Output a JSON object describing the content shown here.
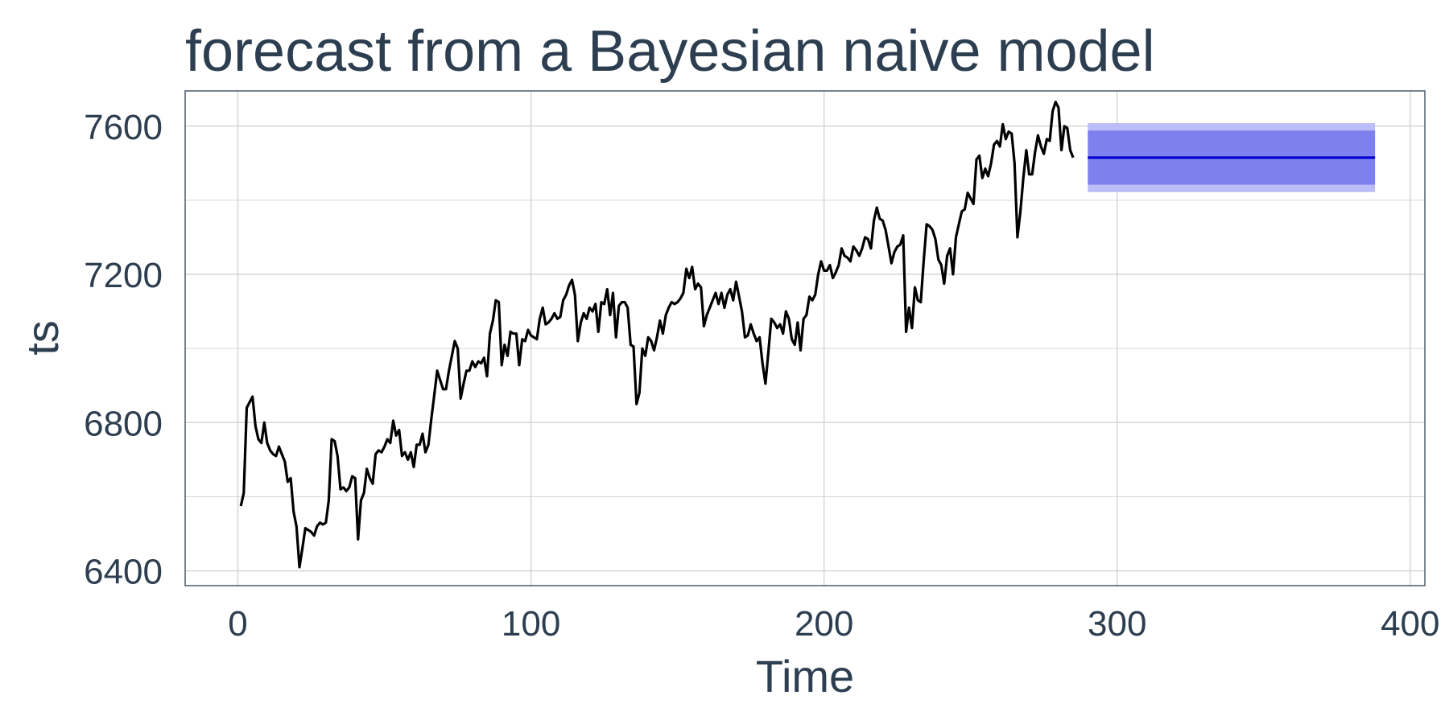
{
  "chart_data": {
    "type": "line",
    "title": "forecast from a Bayesian naive model",
    "xlabel": "Time",
    "ylabel": "ts",
    "xlim": [
      -18,
      405
    ],
    "ylim": [
      6360,
      7695
    ],
    "x_ticks": [
      0,
      100,
      200,
      300,
      400
    ],
    "y_ticks": [
      6400,
      6800,
      7200,
      7600
    ],
    "grid": true,
    "colors": {
      "text": "#2c3e50",
      "grid": "#d4d6d9",
      "border": "#4a5a6a",
      "observed": "#000000",
      "forecast_mean": "#0000cc",
      "interval_80": "#7d80ee",
      "interval_95": "#babdf7"
    },
    "series": [
      {
        "name": "observed",
        "x_start": 1,
        "values": [
          6575,
          6610,
          6840,
          6855,
          6870,
          6790,
          6755,
          6745,
          6800,
          6745,
          6725,
          6715,
          6710,
          6735,
          6715,
          6695,
          6640,
          6650,
          6560,
          6520,
          6410,
          6460,
          6515,
          6510,
          6505,
          6495,
          6520,
          6530,
          6525,
          6530,
          6590,
          6755,
          6750,
          6710,
          6620,
          6625,
          6615,
          6625,
          6655,
          6650,
          6485,
          6590,
          6610,
          6675,
          6650,
          6635,
          6715,
          6725,
          6720,
          6735,
          6755,
          6745,
          6805,
          6765,
          6780,
          6710,
          6720,
          6700,
          6720,
          6680,
          6740,
          6740,
          6770,
          6720,
          6740,
          6810,
          6875,
          6940,
          6915,
          6890,
          6890,
          6940,
          6980,
          7020,
          7000,
          6865,
          6905,
          6940,
          6940,
          6965,
          6950,
          6965,
          6960,
          6975,
          6925,
          7040,
          7075,
          7130,
          7125,
          6955,
          7010,
          6980,
          7045,
          7040,
          7040,
          6955,
          7025,
          7020,
          7050,
          7035,
          7030,
          7025,
          7080,
          7110,
          7065,
          7070,
          7080,
          7095,
          7080,
          7085,
          7130,
          7145,
          7170,
          7185,
          7145,
          7020,
          7070,
          7095,
          7080,
          7110,
          7100,
          7120,
          7045,
          7125,
          7120,
          7160,
          7090,
          7150,
          7030,
          7115,
          7125,
          7125,
          7110,
          7010,
          7005,
          6850,
          6880,
          7000,
          6980,
          7030,
          7020,
          6995,
          7030,
          7075,
          7040,
          7090,
          7110,
          7125,
          7120,
          7125,
          7135,
          7150,
          7215,
          7190,
          7220,
          7160,
          7175,
          7165,
          7060,
          7090,
          7110,
          7130,
          7150,
          7120,
          7150,
          7110,
          7145,
          7160,
          7130,
          7180,
          7140,
          7100,
          7030,
          7035,
          7065,
          7040,
          7020,
          7030,
          6960,
          6905,
          6990,
          7080,
          7070,
          7055,
          7065,
          7040,
          7100,
          7080,
          7025,
          7010,
          7070,
          6995,
          7080,
          7090,
          7140,
          7130,
          7145,
          7200,
          7235,
          7210,
          7210,
          7225,
          7190,
          7205,
          7225,
          7270,
          7250,
          7245,
          7235,
          7275,
          7265,
          7250,
          7270,
          7300,
          7295,
          7270,
          7345,
          7380,
          7350,
          7345,
          7320,
          7275,
          7230,
          7260,
          7275,
          7280,
          7305,
          7045,
          7110,
          7055,
          7165,
          7130,
          7125,
          7235,
          7335,
          7330,
          7320,
          7295,
          7240,
          7225,
          7175,
          7250,
          7270,
          7200,
          7300,
          7335,
          7370,
          7375,
          7420,
          7405,
          7390,
          7510,
          7520,
          7460,
          7485,
          7465,
          7500,
          7550,
          7560,
          7545,
          7605,
          7565,
          7585,
          7580,
          7500,
          7300,
          7370,
          7460,
          7535,
          7470,
          7470,
          7530,
          7575,
          7545,
          7525,
          7565,
          7560,
          7640,
          7665,
          7650,
          7535,
          7600,
          7595,
          7535,
          7515
        ]
      },
      {
        "name": "forecast_mean",
        "x_start": 290,
        "x_end": 388,
        "value": 7515,
        "interval_80": [
          7442,
          7588
        ],
        "interval_95": [
          7422,
          7608
        ]
      }
    ]
  }
}
